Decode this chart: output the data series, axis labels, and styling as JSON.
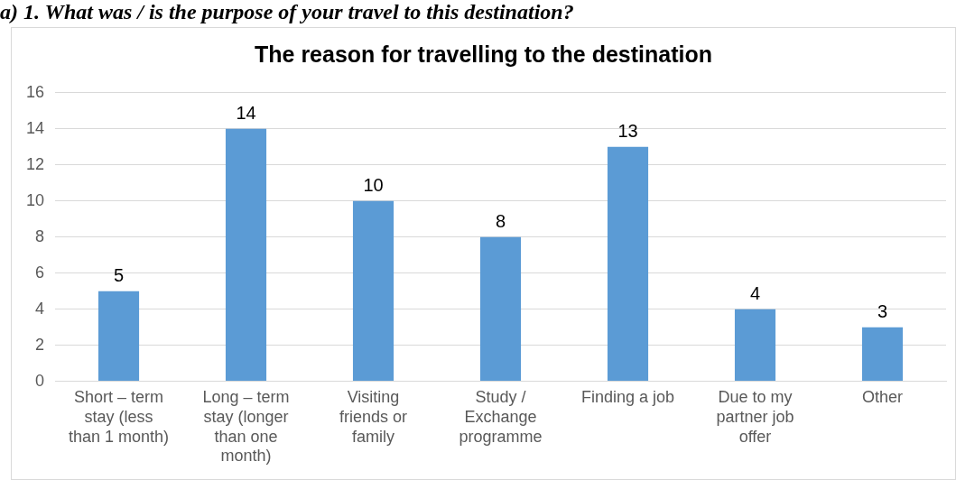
{
  "chart_data": {
    "type": "bar",
    "title": "The reason for travelling to the destination",
    "annotations": [
      "a) 1. What was / is the purpose of your travel to this destination?"
    ],
    "categories": [
      "Short – term stay (less than 1 month)",
      "Long – term stay (longer than one month)",
      "Visiting friends or family",
      "Study / Exchange programme",
      "Finding a job",
      "Due to my partner job offer",
      "Other"
    ],
    "values": [
      5,
      14,
      10,
      8,
      13,
      4,
      3
    ],
    "color": "#5b9bd5",
    "data_labels": true,
    "ylim": [
      0,
      16
    ],
    "yticks": [
      0,
      2,
      4,
      6,
      8,
      10,
      12,
      14,
      16
    ],
    "grid": "y",
    "legend": false
  }
}
